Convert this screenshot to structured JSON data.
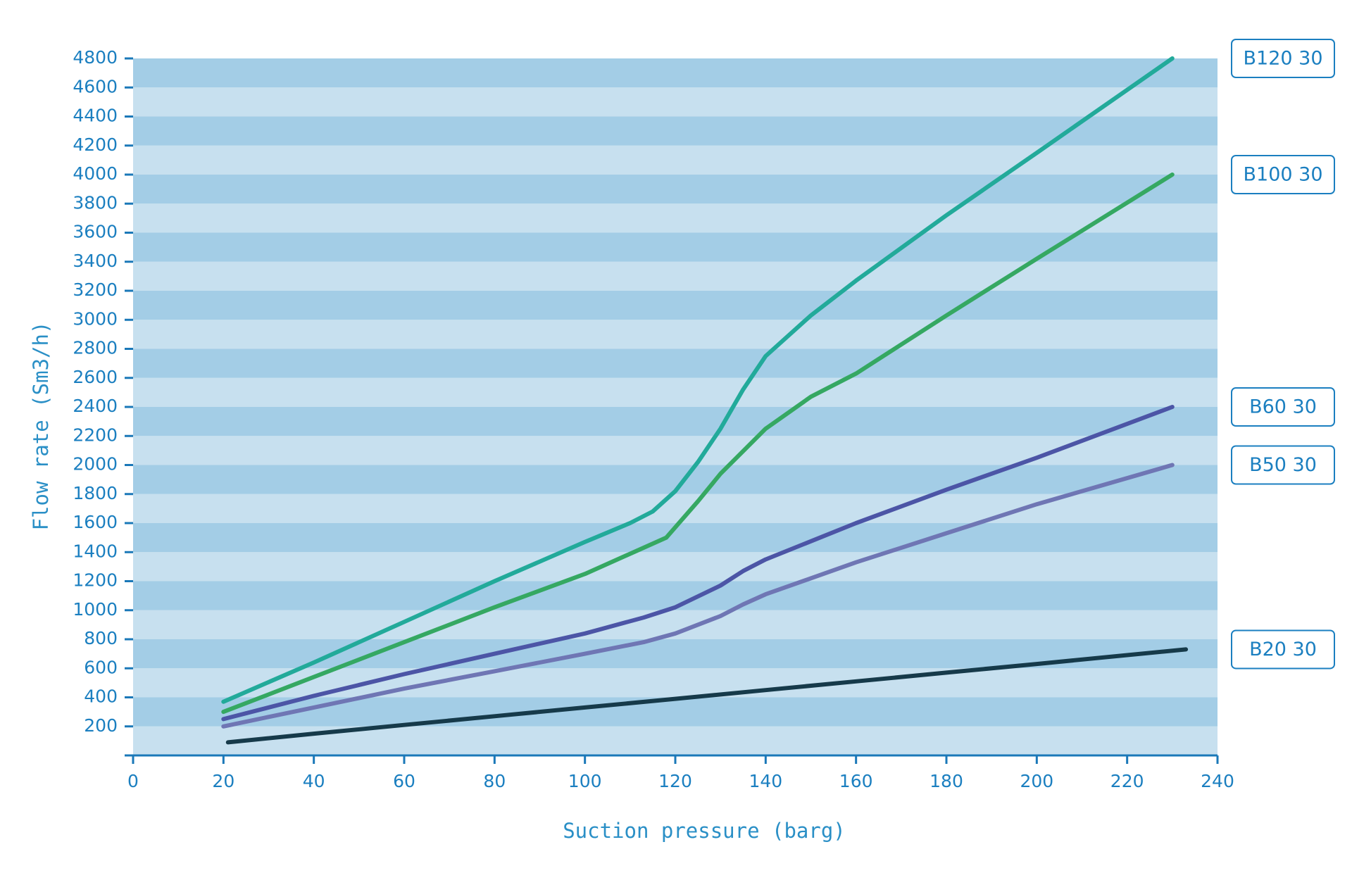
{
  "chart_data": {
    "type": "line",
    "x_label": "Suction pressure (barg)",
    "y_label": "Flow rate (Sm3/h)",
    "xlim": [
      0,
      240
    ],
    "xticks": [
      0,
      20,
      40,
      60,
      80,
      100,
      120,
      140,
      160,
      180,
      200,
      220,
      240
    ],
    "ylim": [
      0,
      4800
    ],
    "yticks": [
      200,
      400,
      600,
      800,
      1000,
      1200,
      1400,
      1600,
      1800,
      2000,
      2200,
      2400,
      2600,
      2800,
      3000,
      3200,
      3400,
      3600,
      3800,
      4000,
      4200,
      4400,
      4600,
      4800
    ],
    "band_colors": [
      "#a3cde6",
      "#c7e0ef"
    ],
    "series": [
      {
        "name": "B120 30",
        "color": "#22aa9a",
        "x": [
          20,
          40,
          60,
          80,
          100,
          110,
          115,
          120,
          125,
          130,
          135,
          140,
          150,
          160,
          180,
          200,
          230
        ],
        "values": [
          370,
          640,
          920,
          1200,
          1470,
          1600,
          1680,
          1820,
          2020,
          2250,
          2520,
          2750,
          3030,
          3270,
          3720,
          4150,
          4800
        ]
      },
      {
        "name": "B100 30",
        "color": "#35a862",
        "x": [
          20,
          40,
          60,
          80,
          100,
          118,
          125,
          130,
          140,
          150,
          160,
          180,
          200,
          230
        ],
        "values": [
          300,
          540,
          780,
          1020,
          1250,
          1500,
          1750,
          1940,
          2250,
          2470,
          2630,
          3030,
          3420,
          4000
        ]
      },
      {
        "name": "B60 30",
        "color": "#4c55a6",
        "x": [
          20,
          40,
          60,
          80,
          100,
          113,
          120,
          130,
          135,
          140,
          160,
          180,
          200,
          230
        ],
        "values": [
          250,
          410,
          560,
          700,
          840,
          950,
          1020,
          1170,
          1270,
          1350,
          1600,
          1830,
          2050,
          2400
        ]
      },
      {
        "name": "B50 30",
        "color": "#6f76b4",
        "x": [
          20,
          40,
          60,
          80,
          100,
          113,
          120,
          130,
          135,
          140,
          160,
          180,
          200,
          230
        ],
        "values": [
          200,
          330,
          460,
          580,
          700,
          780,
          840,
          960,
          1040,
          1110,
          1330,
          1530,
          1730,
          2000
        ]
      },
      {
        "name": "B20 30",
        "color": "#163a4a",
        "x": [
          21,
          40,
          60,
          80,
          100,
          120,
          140,
          160,
          180,
          200,
          233
        ],
        "values": [
          90,
          150,
          210,
          270,
          330,
          390,
          450,
          510,
          570,
          630,
          730
        ]
      }
    ]
  }
}
